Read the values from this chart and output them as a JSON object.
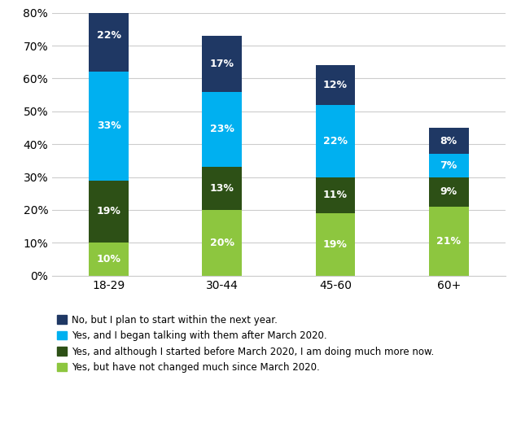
{
  "categories": [
    "18-29",
    "30-44",
    "45-60",
    "60+"
  ],
  "series": [
    {
      "label": "Yes, but have not changed much since March 2020.",
      "values": [
        10,
        20,
        19,
        21
      ],
      "color": "#8dc63f"
    },
    {
      "label": "Yes, and although I started before March 2020, I am doing much more now.",
      "values": [
        19,
        13,
        11,
        9
      ],
      "color": "#2d5016"
    },
    {
      "label": "Yes, and I began talking with them after March 2020.",
      "values": [
        33,
        23,
        22,
        7
      ],
      "color": "#00b0f0"
    },
    {
      "label": "No, but I plan to start within the next year.",
      "values": [
        22,
        17,
        12,
        8
      ],
      "color": "#1f3864"
    }
  ],
  "ylim": [
    0,
    80
  ],
  "yticks": [
    0,
    10,
    20,
    30,
    40,
    50,
    60,
    70,
    80
  ],
  "bar_width": 0.35,
  "figure_size": [
    6.4,
    5.21
  ],
  "dpi": 100,
  "background_color": "#ffffff",
  "grid_color": "#cccccc",
  "label_color": "#ffffff",
  "label_fontsize": 9,
  "tick_fontsize": 10,
  "legend_fontsize": 8.5,
  "x_positions": [
    0.5,
    1.5,
    2.5,
    3.5
  ]
}
